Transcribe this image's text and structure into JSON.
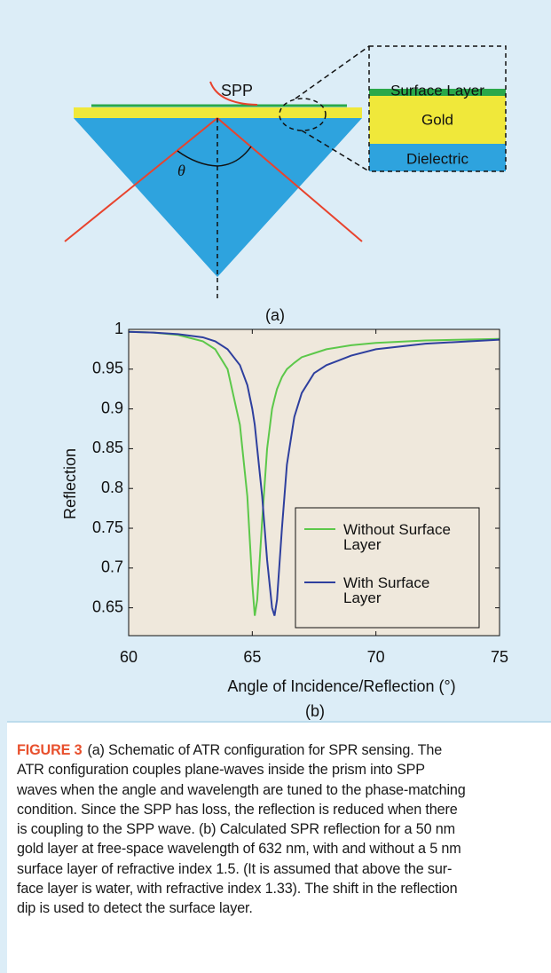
{
  "diagram": {
    "spp_label": "SPP",
    "angle_label": "θ",
    "inset": {
      "surface_layer": "Surface Layer",
      "gold": "Gold",
      "dielectric": "Dielectric"
    },
    "panel_label": "(a)"
  },
  "chart_data": {
    "type": "line",
    "xlabel": "Angle of Incidence/Reflection (°)",
    "ylabel": "Reflection",
    "panel_label": "(b)",
    "x": [
      60,
      61,
      62,
      63,
      63.5,
      64,
      64.5,
      64.8,
      65,
      65.1,
      65.2,
      65.4,
      65.6,
      65.8,
      65.9,
      66,
      66.2,
      66.4,
      66.7,
      67,
      67.5,
      68,
      69,
      70,
      72,
      75
    ],
    "series": [
      {
        "name": "Without Surface Layer",
        "color": "#5cc84a",
        "values": [
          0.997,
          0.996,
          0.993,
          0.985,
          0.975,
          0.95,
          0.88,
          0.79,
          0.68,
          0.64,
          0.66,
          0.76,
          0.85,
          0.9,
          0.913,
          0.925,
          0.94,
          0.95,
          0.958,
          0.965,
          0.97,
          0.975,
          0.98,
          0.983,
          0.986,
          0.988
        ]
      },
      {
        "name": "With Surface Layer",
        "color": "#2e3f9e",
        "values": [
          0.997,
          0.996,
          0.994,
          0.99,
          0.985,
          0.975,
          0.955,
          0.93,
          0.9,
          0.88,
          0.85,
          0.79,
          0.71,
          0.65,
          0.64,
          0.66,
          0.75,
          0.83,
          0.89,
          0.92,
          0.945,
          0.955,
          0.967,
          0.975,
          0.982,
          0.987
        ]
      }
    ],
    "xlim": [
      60,
      75
    ],
    "xticks": [
      60,
      65,
      70,
      75
    ],
    "ylim": [
      0.615,
      1.0
    ],
    "yticks": [
      0.65,
      0.7,
      0.75,
      0.8,
      0.85,
      0.9,
      0.95,
      1
    ],
    "legend": "lower right"
  },
  "caption": {
    "label": "FIGURE 3",
    "lines": [
      "(a) Schematic of ATR configuration for SPR sensing. The",
      "ATR configuration couples plane-waves inside the prism into SPP",
      "waves when the angle and wavelength are tuned to the phase-matching",
      "condition. Since the SPP has loss, the reflection is reduced when there",
      "is coupling to the SPP wave. (b) Calculated SPR reflection for a 50 nm",
      "gold layer at free-space wavelength of 632 nm, with and without a 5 nm",
      "surface layer of refractive index 1.5. (It is assumed that above the sur-",
      "face layer is water, with refractive index 1.33). The shift in the reflection",
      "dip is used to detect the surface layer."
    ]
  }
}
